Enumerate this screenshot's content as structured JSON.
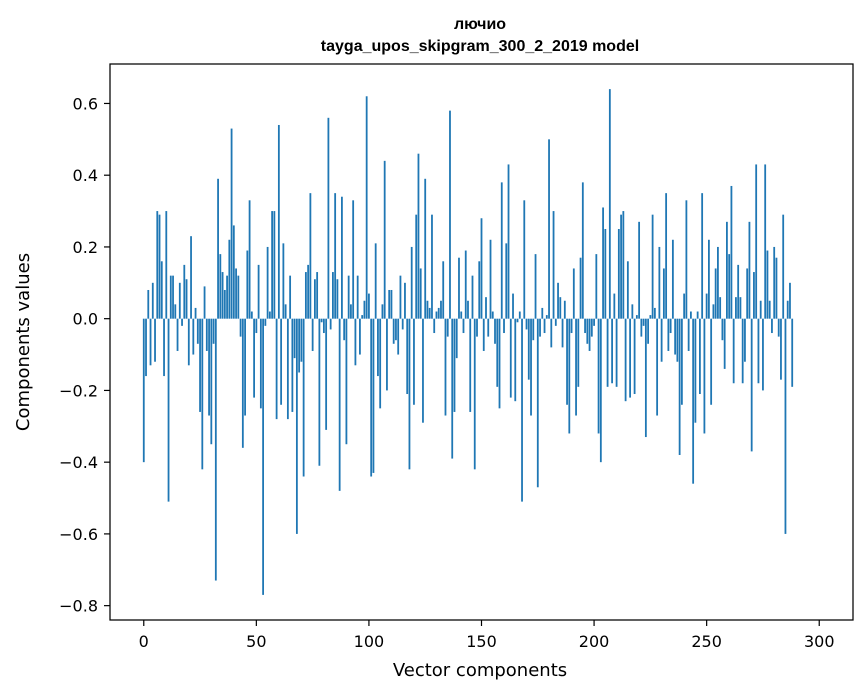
{
  "chart_data": {
    "type": "bar",
    "title_line1": "лючио",
    "title_line2": "tayga_upos_skipgram_300_2_2019 model",
    "xlabel": "Vector components",
    "ylabel": "Components values",
    "xlim": [
      -15,
      315
    ],
    "ylim": [
      -0.84,
      0.71
    ],
    "xticks": [
      0,
      50,
      100,
      150,
      200,
      250,
      300
    ],
    "yticks": [
      -0.8,
      -0.6,
      -0.4,
      -0.2,
      0.0,
      0.2,
      0.4,
      0.6
    ],
    "ytick_labels": [
      "−0.8",
      "−0.6",
      "−0.4",
      "−0.2",
      "0.0",
      "0.2",
      "0.4",
      "0.6"
    ],
    "bar_color": "#1f77b4",
    "x_start": 0,
    "values": [
      -0.4,
      -0.16,
      0.08,
      -0.13,
      0.1,
      -0.12,
      0.3,
      0.29,
      0.16,
      -0.16,
      0.3,
      -0.51,
      0.12,
      0.12,
      0.04,
      -0.09,
      0.1,
      -0.02,
      0.15,
      0.11,
      -0.13,
      0.23,
      -0.1,
      0.03,
      -0.07,
      -0.26,
      -0.42,
      0.09,
      -0.09,
      -0.27,
      -0.35,
      -0.07,
      -0.73,
      0.39,
      0.18,
      0.13,
      0.08,
      0.12,
      0.22,
      0.53,
      0.26,
      0.14,
      0.12,
      -0.05,
      -0.36,
      -0.27,
      0.19,
      0.33,
      0.02,
      -0.22,
      -0.04,
      0.15,
      -0.25,
      -0.77,
      -0.02,
      0.2,
      0.02,
      0.3,
      0.3,
      -0.28,
      0.54,
      -0.24,
      0.21,
      0.04,
      -0.28,
      0.12,
      -0.26,
      -0.11,
      -0.6,
      -0.15,
      -0.12,
      -0.44,
      0.13,
      0.15,
      0.35,
      -0.09,
      0.11,
      0.13,
      -0.41,
      -0.01,
      -0.04,
      -0.31,
      0.56,
      -0.03,
      0.13,
      0.35,
      0.11,
      -0.48,
      0.34,
      -0.06,
      -0.35,
      0.12,
      0.04,
      0.33,
      -0.13,
      0.12,
      -0.1,
      0.01,
      0.05,
      0.62,
      0.07,
      -0.44,
      -0.43,
      0.21,
      -0.16,
      -0.25,
      0.04,
      0.44,
      -0.2,
      0.08,
      0.08,
      -0.07,
      -0.06,
      -0.1,
      0.12,
      -0.03,
      0.1,
      -0.21,
      -0.42,
      0.2,
      -0.24,
      0.29,
      0.46,
      0.14,
      -0.29,
      0.39,
      0.05,
      0.03,
      0.29,
      -0.04,
      0.02,
      0.03,
      0.05,
      0.16,
      -0.27,
      -0.05,
      0.58,
      -0.39,
      -0.26,
      -0.11,
      0.17,
      0.02,
      -0.04,
      0.19,
      0.05,
      -0.26,
      0.12,
      -0.42,
      -0.05,
      0.16,
      0.28,
      -0.09,
      0.06,
      -0.05,
      0.22,
      0.02,
      -0.07,
      -0.19,
      -0.25,
      0.38,
      -0.04,
      0.21,
      0.43,
      -0.22,
      0.07,
      -0.23,
      -0.01,
      0.02,
      -0.51,
      0.33,
      -0.03,
      -0.17,
      -0.27,
      -0.06,
      0.18,
      -0.47,
      -0.05,
      0.03,
      -0.04,
      0.01,
      0.5,
      -0.08,
      0.3,
      -0.02,
      0.1,
      0.06,
      -0.08,
      0.05,
      -0.24,
      -0.32,
      -0.04,
      0.14,
      -0.27,
      -0.19,
      0.17,
      0.38,
      -0.04,
      -0.07,
      -0.09,
      -0.05,
      -0.02,
      0.18,
      -0.32,
      -0.4,
      0.31,
      0.25,
      -0.19,
      0.64,
      -0.18,
      0.07,
      -0.19,
      0.25,
      0.29,
      0.3,
      -0.23,
      0.16,
      -0.22,
      0.04,
      -0.21,
      0.01,
      0.27,
      -0.05,
      -0.02,
      -0.33,
      -0.07,
      0.01,
      0.29,
      0.03,
      -0.27,
      0.2,
      -0.12,
      0.14,
      0.35,
      -0.09,
      -0.04,
      0.22,
      -0.1,
      -0.12,
      -0.38,
      -0.24,
      0.07,
      0.33,
      -0.09,
      0.02,
      -0.46,
      -0.29,
      0.02,
      -0.21,
      0.35,
      -0.32,
      0.07,
      0.22,
      -0.24,
      0.04,
      0.14,
      0.2,
      0.06,
      -0.06,
      -0.14,
      0.27,
      0.18,
      0.37,
      -0.18,
      0.06,
      0.15,
      0.06,
      -0.18,
      -0.12,
      0.14,
      0.27,
      -0.37,
      0.13,
      0.43,
      -0.18,
      0.05,
      -0.2,
      0.43,
      0.19,
      0.05,
      -0.04,
      0.2,
      0.17,
      -0.05,
      -0.17,
      0.29,
      -0.6,
      0.05,
      0.1,
      -0.19
    ]
  }
}
